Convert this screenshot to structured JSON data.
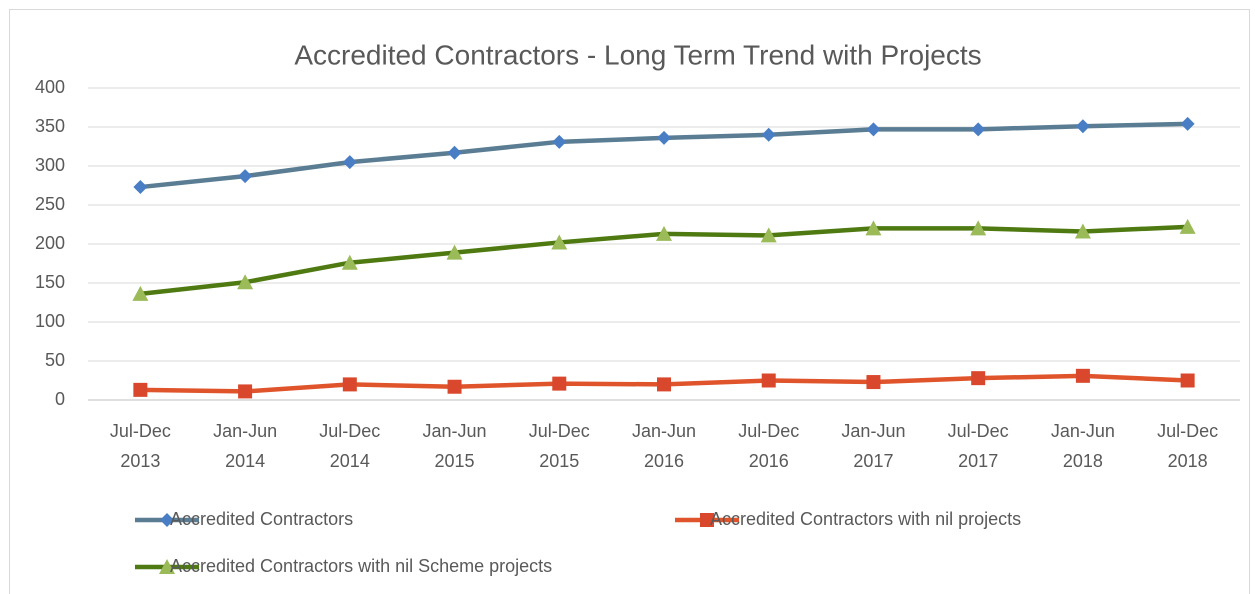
{
  "chart_data": {
    "type": "line",
    "title": "Accredited Contractors - Long Term Trend with Projects",
    "categories": [
      "Jul-Dec 2013",
      "Jan-Jun 2014",
      "Jul-Dec 2014",
      "Jan-Jun 2015",
      "Jul-Dec 2015",
      "Jan-Jun 2016",
      "Jul-Dec 2016",
      "Jan-Jun 2017",
      "Jul-Dec 2017",
      "Jan-Jun 2018",
      "Jul-Dec 2018"
    ],
    "series": [
      {
        "name": "Accredited Contractors",
        "color": "#5a7d93",
        "marker_color": "#4a7ec4",
        "marker": "diamond",
        "values": [
          273,
          287,
          305,
          317,
          331,
          336,
          340,
          347,
          347,
          351,
          354
        ]
      },
      {
        "name": "Accredited Contractors with nil projects",
        "color": "#e0542c",
        "marker_color": "#d9482c",
        "marker": "square",
        "values": [
          13,
          11,
          20,
          17,
          21,
          20,
          25,
          23,
          28,
          31,
          25
        ]
      },
      {
        "name": "Accredited Contractors with nil Scheme projects",
        "color": "#4f7a12",
        "marker_color": "#9bbb59",
        "marker": "triangle",
        "values": [
          136,
          151,
          176,
          189,
          202,
          213,
          211,
          220,
          220,
          216,
          222
        ]
      }
    ],
    "ylim": [
      0,
      400
    ],
    "yticks": [
      0,
      50,
      100,
      150,
      200,
      250,
      300,
      350,
      400
    ],
    "grid": true,
    "legend": "bottom"
  }
}
